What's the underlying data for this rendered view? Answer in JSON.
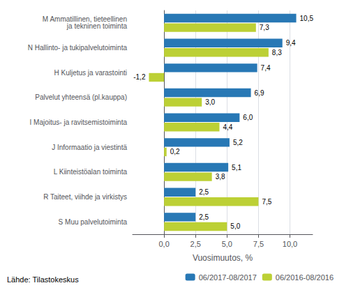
{
  "chart_data": {
    "type": "bar",
    "orientation": "horizontal",
    "categories": [
      "M Ammatillinen, tieteellinen\n ja tekninen toiminta",
      "N Hallinto- ja tukipalvelutoiminta",
      "H Kuljetus ja varastointi",
      "Palvelut yhteensä (pl.kauppa)",
      "I Majoitus- ja ravitsemistoiminta",
      "J Informaatio ja viestintä",
      "L Kiinteistöalan toiminta",
      "R Taiteet, viihde ja virkistys",
      "S Muu palvelutoiminta"
    ],
    "series": [
      {
        "name": "06/2017-08/2017",
        "color": "#2878b5",
        "values": [
          10.5,
          9.4,
          7.4,
          6.9,
          6.0,
          5.2,
          5.1,
          2.5,
          2.5
        ],
        "value_labels": [
          "10,5",
          "9,4",
          "7,4",
          "6,9",
          "6,0",
          "5,2",
          "5,1",
          "2,5",
          "2,5"
        ]
      },
      {
        "name": "06/2016-08/2016",
        "color": "#bcd035",
        "values": [
          7.3,
          8.3,
          -1.2,
          3.0,
          4.4,
          0.2,
          3.8,
          7.5,
          5.0
        ],
        "value_labels": [
          "7,3",
          "8,3",
          "-1,2",
          "3,0",
          "4,4",
          "0,2",
          "3,8",
          "7,5",
          "5,0"
        ]
      }
    ],
    "xlabel": "Vuosimuutos, %",
    "xlim": [
      -2.5,
      11.8
    ],
    "xticks": [
      {
        "value": 0.0,
        "label": "0,0"
      },
      {
        "value": 2.5,
        "label": "2,5"
      },
      {
        "value": 5.0,
        "label": "5,0"
      },
      {
        "value": 7.5,
        "label": "7,5"
      },
      {
        "value": 10.0,
        "label": "10,0"
      }
    ],
    "grid": true,
    "legend": "lower right",
    "data_labels": true,
    "footer": "Lähde: Tilastokeskus"
  }
}
